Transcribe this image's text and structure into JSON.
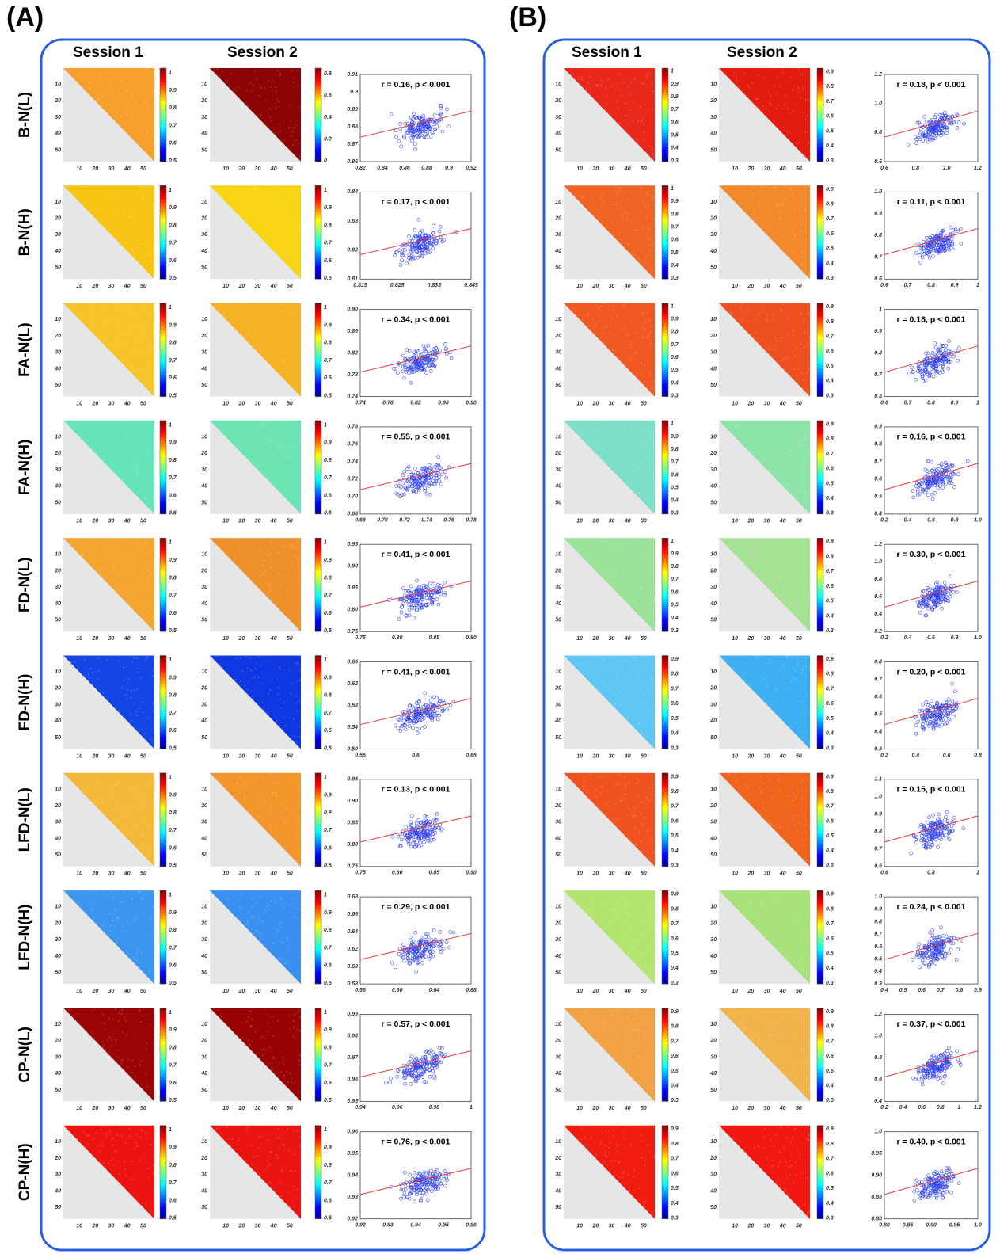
{
  "panels": [
    {
      "label": "(A)",
      "col_headers": [
        "Session 1",
        "Session 2"
      ],
      "heatmap_ticks": [
        "10",
        "20",
        "30",
        "40",
        "50"
      ],
      "rows": [
        {
          "label": "B-N(L)",
          "s1": {
            "color": "#f5a02c",
            "cbar": [
              "0.5",
              "0.6",
              "0.7",
              "0.8",
              "0.9",
              "1"
            ]
          },
          "s2": {
            "color": "#8c0404",
            "cbar": [
              "0",
              "0.2",
              "0.4",
              "0.6",
              "0.8"
            ]
          },
          "stat": "r = 0.16, p < 0.001",
          "xticks": [
            "0.82",
            "0.84",
            "0.86",
            "0.88",
            "0.9",
            "0.92"
          ],
          "yticks": [
            "0.86",
            "0.87",
            "0.88",
            "0.89",
            "0.9",
            "0.91"
          ]
        },
        {
          "label": "B-N(H)",
          "s1": {
            "color": "#f8c414",
            "cbar": [
              "0.5",
              "0.6",
              "0.7",
              "0.8",
              "0.9",
              "1"
            ]
          },
          "s2": {
            "color": "#f8d414",
            "cbar": [
              "0.5",
              "0.6",
              "0.7",
              "0.8",
              "0.9",
              "1"
            ]
          },
          "stat": "r = 0.17, p < 0.001",
          "xticks": [
            "0.815",
            "0.825",
            "0.835",
            "0.845"
          ],
          "yticks": [
            "0.81",
            "0.82",
            "0.83",
            "0.84"
          ]
        },
        {
          "label": "FA-N(L)",
          "s1": {
            "color": "#f6c428",
            "cbar": [
              "0.5",
              "0.6",
              "0.7",
              "0.8",
              "0.9",
              "1"
            ]
          },
          "s2": {
            "color": "#f4b224",
            "cbar": [
              "0.5",
              "0.6",
              "0.7",
              "0.8",
              "0.9",
              "1"
            ]
          },
          "stat": "r = 0.34, p < 0.001",
          "xticks": [
            "0.74",
            "0.78",
            "0.82",
            "0.86",
            "0.90"
          ],
          "yticks": [
            "0.74",
            "0.78",
            "0.82",
            "0.86",
            "0.90"
          ]
        },
        {
          "label": "FA-N(H)",
          "s1": {
            "color": "#64e4b8",
            "cbar": [
              "0.5",
              "0.6",
              "0.7",
              "0.8",
              "0.9",
              "1"
            ]
          },
          "s2": {
            "color": "#6ce4b4",
            "cbar": [
              "0.5",
              "0.6",
              "0.7",
              "0.8",
              "0.9",
              "1"
            ]
          },
          "stat": "r = 0.55, p < 0.001",
          "xticks": [
            "0.68",
            "0.70",
            "0.72",
            "0.74",
            "0.76",
            "0.78"
          ],
          "yticks": [
            "0.68",
            "0.70",
            "0.72",
            "0.74",
            "0.76",
            "0.78"
          ]
        },
        {
          "label": "FD-N(L)",
          "s1": {
            "color": "#f3a530",
            "cbar": [
              "0.5",
              "0.6",
              "0.7",
              "0.8",
              "0.9",
              "1"
            ]
          },
          "s2": {
            "color": "#f0902a",
            "cbar": [
              "0.5",
              "0.6",
              "0.7",
              "0.8",
              "0.9",
              "1"
            ]
          },
          "stat": "r = 0.41, p < 0.001",
          "xticks": [
            "0.75",
            "0.80",
            "0.85",
            "0.90"
          ],
          "yticks": [
            "0.75",
            "0.80",
            "0.85",
            "0.90",
            "0.95"
          ]
        },
        {
          "label": "FD-N(H)",
          "s1": {
            "color": "#1446e6",
            "cbar": [
              "0.5",
              "0.6",
              "0.7",
              "0.8",
              "0.9",
              "1"
            ]
          },
          "s2": {
            "color": "#1038e2",
            "cbar": [
              "0.5",
              "0.6",
              "0.7",
              "0.8",
              "0.9",
              "1"
            ]
          },
          "stat": "r = 0.41, p < 0.001",
          "xticks": [
            "0.55",
            "0.6",
            "0.65"
          ],
          "yticks": [
            "0.50",
            "0.54",
            "0.58",
            "0.62",
            "0.66"
          ]
        },
        {
          "label": "LFD-N(L)",
          "s1": {
            "color": "#f5b838",
            "cbar": [
              "0.5",
              "0.6",
              "0.7",
              "0.8",
              "0.9",
              "1"
            ]
          },
          "s2": {
            "color": "#f2962c",
            "cbar": [
              "0.5",
              "0.6",
              "0.7",
              "0.8",
              "0.9",
              "1"
            ]
          },
          "stat": "r = 0.13, p < 0.001",
          "xticks": [
            "0.75",
            "0.80",
            "0.85",
            "0.90"
          ],
          "yticks": [
            "0.75",
            "0.80",
            "0.85",
            "0.90",
            "0.95"
          ]
        },
        {
          "label": "LFD-N(H)",
          "s1": {
            "color": "#3c96f0",
            "cbar": [
              "0.5",
              "0.6",
              "0.7",
              "0.8",
              "0.9",
              "1"
            ]
          },
          "s2": {
            "color": "#3a90f0",
            "cbar": [
              "0.5",
              "0.6",
              "0.7",
              "0.8",
              "0.9",
              "1"
            ]
          },
          "stat": "r = 0.29, p < 0.001",
          "xticks": [
            "0.56",
            "0.60",
            "0.64",
            "0.68"
          ],
          "yticks": [
            "0.58",
            "0.60",
            "0.62",
            "0.64",
            "0.66",
            "0.68"
          ]
        },
        {
          "label": "CP-N(L)",
          "s1": {
            "color": "#9a0404",
            "cbar": [
              "0.5",
              "0.6",
              "0.7",
              "0.8",
              "0.9",
              "1"
            ]
          },
          "s2": {
            "color": "#980404",
            "cbar": [
              "0.5",
              "0.6",
              "0.7",
              "0.8",
              "0.9",
              "1"
            ]
          },
          "stat": "r = 0.57, p < 0.001",
          "xticks": [
            "0.94",
            "0.96",
            "0.98",
            "1"
          ],
          "yticks": [
            "0.95",
            "0.96",
            "0.97",
            "0.98",
            "0.99"
          ]
        },
        {
          "label": "CP-N(H)",
          "s1": {
            "color": "#ec1410",
            "cbar": [
              "0.5",
              "0.6",
              "0.7",
              "0.8",
              "0.9",
              "1"
            ]
          },
          "s2": {
            "color": "#ea1410",
            "cbar": [
              "0.5",
              "0.6",
              "0.7",
              "0.8",
              "0.9",
              "1"
            ]
          },
          "stat": "r = 0.76, p < 0.001",
          "xticks": [
            "0.92",
            "0.93",
            "0.94",
            "0.95",
            "0.96"
          ],
          "yticks": [
            "0.92",
            "0.93",
            "0.94",
            "0.95",
            "0.96"
          ]
        }
      ]
    },
    {
      "label": "(B)",
      "col_headers": [
        "Session 1",
        "Session 2"
      ],
      "heatmap_ticks": [
        "10",
        "20",
        "30",
        "40",
        "50"
      ],
      "rows": [
        {
          "s1": {
            "color": "#e8281a",
            "cbar": [
              "0.3",
              "0.4",
              "0.5",
              "0.6",
              "0.7",
              "0.8",
              "0.9",
              "1"
            ]
          },
          "s2": {
            "color": "#e41c10",
            "cbar": [
              "0.3",
              "0.4",
              "0.5",
              "0.6",
              "0.7",
              "0.8",
              "0.9"
            ]
          },
          "stat": "r = 0.18, p < 0.001",
          "xticks": [
            "0.6",
            "0.8",
            "1.0",
            "1.2"
          ],
          "yticks": [
            "0.6",
            "0.8",
            "1.0",
            "1.2"
          ]
        },
        {
          "s1": {
            "color": "#f06424",
            "cbar": [
              "0.3",
              "0.4",
              "0.5",
              "0.6",
              "0.7",
              "0.8",
              "0.9",
              "1"
            ]
          },
          "s2": {
            "color": "#f28a2c",
            "cbar": [
              "0.3",
              "0.4",
              "0.5",
              "0.6",
              "0.7",
              "0.8",
              "0.9"
            ]
          },
          "stat": "r = 0.11, p < 0.001",
          "xticks": [
            "0.6",
            "0.7",
            "0.8",
            "0.9",
            "1"
          ],
          "yticks": [
            "0.6",
            "0.7",
            "0.8",
            "0.9",
            "1.0"
          ]
        },
        {
          "s1": {
            "color": "#f05a22",
            "cbar": [
              "0.3",
              "0.4",
              "0.5",
              "0.6",
              "0.7",
              "0.8",
              "0.9",
              "1"
            ]
          },
          "s2": {
            "color": "#ee5020",
            "cbar": [
              "0.3",
              "0.4",
              "0.5",
              "0.6",
              "0.7",
              "0.8",
              "0.9"
            ]
          },
          "stat": "r = 0.18, p < 0.001",
          "xticks": [
            "0.6",
            "0.7",
            "0.8",
            "0.9",
            "1"
          ],
          "yticks": [
            "0.6",
            "0.7",
            "0.8",
            "0.9",
            "1"
          ]
        },
        {
          "s1": {
            "color": "#7ce0c8",
            "cbar": [
              "0.3",
              "0.4",
              "0.5",
              "0.6",
              "0.7",
              "0.8",
              "0.9",
              "1"
            ]
          },
          "s2": {
            "color": "#8ce4a8",
            "cbar": [
              "0.3",
              "0.4",
              "0.5",
              "0.6",
              "0.7",
              "0.8",
              "0.9"
            ]
          },
          "stat": "r = 0.16, p < 0.001",
          "xticks": [
            "0.2",
            "0.4",
            "0.6",
            "0.8",
            "1.0"
          ],
          "yticks": [
            "0.4",
            "0.5",
            "0.6",
            "0.7",
            "0.8",
            "0.9"
          ]
        },
        {
          "s1": {
            "color": "#9ae29a",
            "cbar": [
              "0.3",
              "0.4",
              "0.5",
              "0.6",
              "0.7",
              "0.8",
              "0.9",
              "1"
            ]
          },
          "s2": {
            "color": "#a6e294",
            "cbar": [
              "0.3",
              "0.4",
              "0.5",
              "0.6",
              "0.7",
              "0.8",
              "0.9"
            ]
          },
          "stat": "r = 0.30, p < 0.001",
          "xticks": [
            "0.2",
            "0.4",
            "0.6",
            "0.8",
            "1.0"
          ],
          "yticks": [
            "0.2",
            "0.4",
            "0.6",
            "0.8",
            "1.0",
            "1.2"
          ]
        },
        {
          "s1": {
            "color": "#5ec6f2",
            "cbar": [
              "0.3",
              "0.4",
              "0.5",
              "0.6",
              "0.7",
              "0.8",
              "0.9"
            ]
          },
          "s2": {
            "color": "#3cb0f2",
            "cbar": [
              "0.3",
              "0.4",
              "0.5",
              "0.6",
              "0.7",
              "0.8",
              "0.9"
            ]
          },
          "stat": "r = 0.20, p < 0.001",
          "xticks": [
            "0.2",
            "0.4",
            "0.6",
            "0.8"
          ],
          "yticks": [
            "0.3",
            "0.4",
            "0.5",
            "0.6",
            "0.7",
            "0.8"
          ]
        },
        {
          "s1": {
            "color": "#ef5420",
            "cbar": [
              "0.3",
              "0.4",
              "0.5",
              "0.6",
              "0.7",
              "0.8",
              "0.9"
            ]
          },
          "s2": {
            "color": "#f0641e",
            "cbar": [
              "0.3",
              "0.4",
              "0.5",
              "0.6",
              "0.7",
              "0.8",
              "0.9"
            ]
          },
          "stat": "r = 0.15, p < 0.001",
          "xticks": [
            "0.6",
            "0.8",
            "1"
          ],
          "yticks": [
            "0.6",
            "0.7",
            "0.8",
            "0.9",
            "1.0",
            "1.1"
          ]
        },
        {
          "s1": {
            "color": "#b4e470",
            "cbar": [
              "0.3",
              "0.4",
              "0.5",
              "0.6",
              "0.7",
              "0.8",
              "0.9"
            ]
          },
          "s2": {
            "color": "#a8e27a",
            "cbar": [
              "0.3",
              "0.4",
              "0.5",
              "0.6",
              "0.7",
              "0.8",
              "0.9"
            ]
          },
          "stat": "r = 0.24, p < 0.001",
          "xticks": [
            "0.4",
            "0.5",
            "0.6",
            "0.7",
            "0.8",
            "0.9"
          ],
          "yticks": [
            "0.3",
            "0.4",
            "0.5",
            "0.6",
            "0.7",
            "0.8",
            "0.9",
            "1.0"
          ]
        },
        {
          "s1": {
            "color": "#f2a244",
            "cbar": [
              "0.3",
              "0.4",
              "0.5",
              "0.6",
              "0.7",
              "0.8",
              "0.9"
            ]
          },
          "s2": {
            "color": "#f0b44a",
            "cbar": [
              "0.3",
              "0.4",
              "0.5",
              "0.6",
              "0.7",
              "0.8",
              "0.9"
            ]
          },
          "stat": "r = 0.37, p < 0.001",
          "xticks": [
            "0.2",
            "0.4",
            "0.6",
            "0.8",
            "1",
            "1.2"
          ],
          "yticks": [
            "0.4",
            "0.6",
            "0.8",
            "1.0",
            "1.2"
          ]
        },
        {
          "s1": {
            "color": "#f01c10",
            "cbar": [
              "0.3",
              "0.4",
              "0.5",
              "0.6",
              "0.7",
              "0.8",
              "0.9"
            ]
          },
          "s2": {
            "color": "#f01810",
            "cbar": [
              "0.3",
              "0.4",
              "0.5",
              "0.6",
              "0.7",
              "0.8",
              "0.9"
            ]
          },
          "stat": "r = 0.40, p < 0.001",
          "xticks": [
            "0.80",
            "0.85",
            "0.90",
            "0.95",
            "1.0"
          ],
          "yticks": [
            "0.80",
            "0.85",
            "0.90",
            "0.95",
            "1.0"
          ]
        }
      ]
    }
  ]
}
